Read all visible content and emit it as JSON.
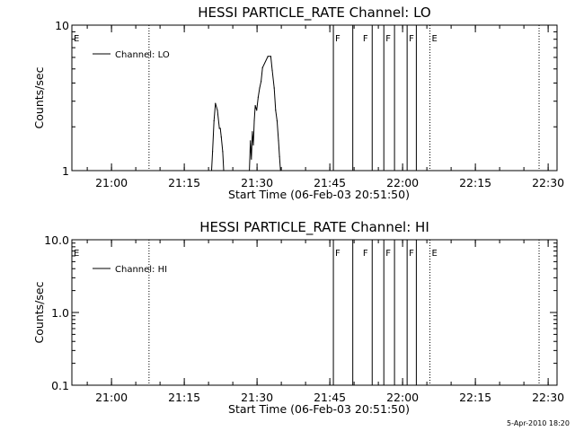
{
  "timestamp": "5-Apr-2010 18:20",
  "chart_data": [
    {
      "type": "line",
      "title": "HESSI PARTICLE_RATE Channel: LO",
      "xlabel": "Start Time (06-Feb-03 20:51:50)",
      "ylabel": "Counts/sec",
      "y_scale": "log",
      "ylim": [
        1,
        10
      ],
      "y_ticks": [
        1,
        10
      ],
      "y_tick_labels": [
        "1",
        "10"
      ],
      "xlim_minutes": [
        0,
        100
      ],
      "x_ticks": [
        8.17,
        23.17,
        38.17,
        53.17,
        68.17,
        83.17,
        98.17
      ],
      "x_tick_labels": [
        "21:00",
        "21:15",
        "21:30",
        "21:45",
        "22:00",
        "22:15",
        "22:30"
      ],
      "legend": {
        "label": "Channel: LO",
        "placement": "top-left"
      },
      "flags": [
        {
          "label": "E",
          "x": 0
        },
        {
          "label": "F",
          "x": 53.9
        },
        {
          "label": "F",
          "x": 59.6
        },
        {
          "label": "F",
          "x": 64.3
        },
        {
          "label": "F",
          "x": 69.1
        },
        {
          "label": "E",
          "x": 73.8
        }
      ],
      "solid_vlines": [
        53.9,
        57.9,
        61.9,
        64.3,
        66.5,
        69.1,
        71.0
      ],
      "dotted_vlines": [
        15.9,
        73.8,
        96.3
      ],
      "series": [
        {
          "name": "Channel: LO",
          "x": [
            28.8,
            29.0,
            29.3,
            29.6,
            30.0,
            30.4,
            30.6,
            30.8,
            31.1,
            31.3,
            36.6,
            36.8,
            37.0,
            37.2,
            37.4,
            37.6,
            37.8,
            38.1,
            38.4,
            38.7,
            39.0,
            39.3,
            40.4,
            41.0,
            41.3,
            41.7,
            42.0,
            42.3,
            42.6,
            42.8,
            43.0
          ],
          "y": [
            1.0,
            1.35,
            2.2,
            2.9,
            2.6,
            1.95,
            1.95,
            1.7,
            1.35,
            1.0,
            1.0,
            1.6,
            1.2,
            1.85,
            1.5,
            2.2,
            2.8,
            2.6,
            3.2,
            3.7,
            4.1,
            5.1,
            6.1,
            6.1,
            4.9,
            3.7,
            2.6,
            2.2,
            1.6,
            1.25,
            1.0
          ]
        }
      ]
    },
    {
      "type": "line",
      "title": "HESSI PARTICLE_RATE Channel: HI",
      "xlabel": "Start Time (06-Feb-03 20:51:50)",
      "ylabel": "Counts/sec",
      "y_scale": "log",
      "ylim": [
        0.1,
        10
      ],
      "y_ticks": [
        0.1,
        1,
        10
      ],
      "y_tick_labels": [
        "0.1",
        "1.0",
        "10.0"
      ],
      "xlim_minutes": [
        0,
        100
      ],
      "x_ticks": [
        8.17,
        23.17,
        38.17,
        53.17,
        68.17,
        83.17,
        98.17
      ],
      "x_tick_labels": [
        "21:00",
        "21:15",
        "21:30",
        "21:45",
        "22:00",
        "22:15",
        "22:30"
      ],
      "legend": {
        "label": "Channel: HI",
        "placement": "top-left"
      },
      "flags": [
        {
          "label": "E",
          "x": 0
        },
        {
          "label": "F",
          "x": 53.9
        },
        {
          "label": "F",
          "x": 59.6
        },
        {
          "label": "F",
          "x": 64.3
        },
        {
          "label": "F",
          "x": 69.1
        },
        {
          "label": "E",
          "x": 73.8
        }
      ],
      "solid_vlines": [
        53.9,
        57.9,
        61.9,
        64.3,
        66.5,
        69.1,
        71.0
      ],
      "dotted_vlines": [
        15.9,
        73.8,
        96.3
      ],
      "series": [
        {
          "name": "Channel: HI",
          "x": [],
          "y": []
        }
      ]
    }
  ]
}
